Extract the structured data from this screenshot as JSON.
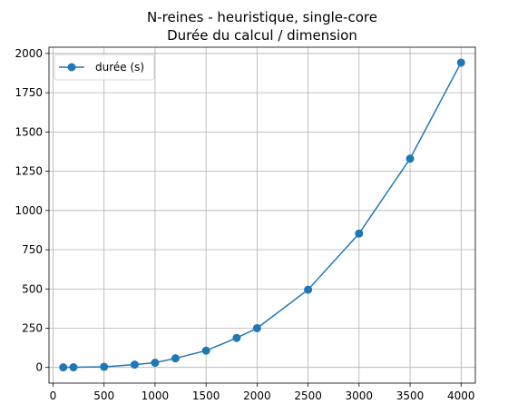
{
  "chart_data": {
    "type": "line",
    "title": "N-reines - heuristique, single-core",
    "subtitle": "Durée du calcul / dimension",
    "xlabel": "",
    "ylabel": "",
    "xlim": [
      -40,
      4140
    ],
    "ylim": [
      -100,
      2040
    ],
    "x_ticks": [
      0,
      500,
      1000,
      1500,
      2000,
      2500,
      3000,
      3500,
      4000
    ],
    "y_ticks": [
      0,
      250,
      500,
      750,
      1000,
      1250,
      1500,
      1750,
      2000
    ],
    "grid": true,
    "legend_position": "top-left",
    "series": [
      {
        "name": "durée (s)",
        "color": "#1f77b4",
        "marker": "circle",
        "x": [
          100,
          200,
          500,
          800,
          1000,
          1200,
          1500,
          1800,
          2000,
          2500,
          3000,
          3500,
          4000
        ],
        "y": [
          0.5,
          1,
          4,
          18,
          30,
          58,
          107,
          188,
          250,
          495,
          853,
          1330,
          1942
        ]
      }
    ]
  }
}
